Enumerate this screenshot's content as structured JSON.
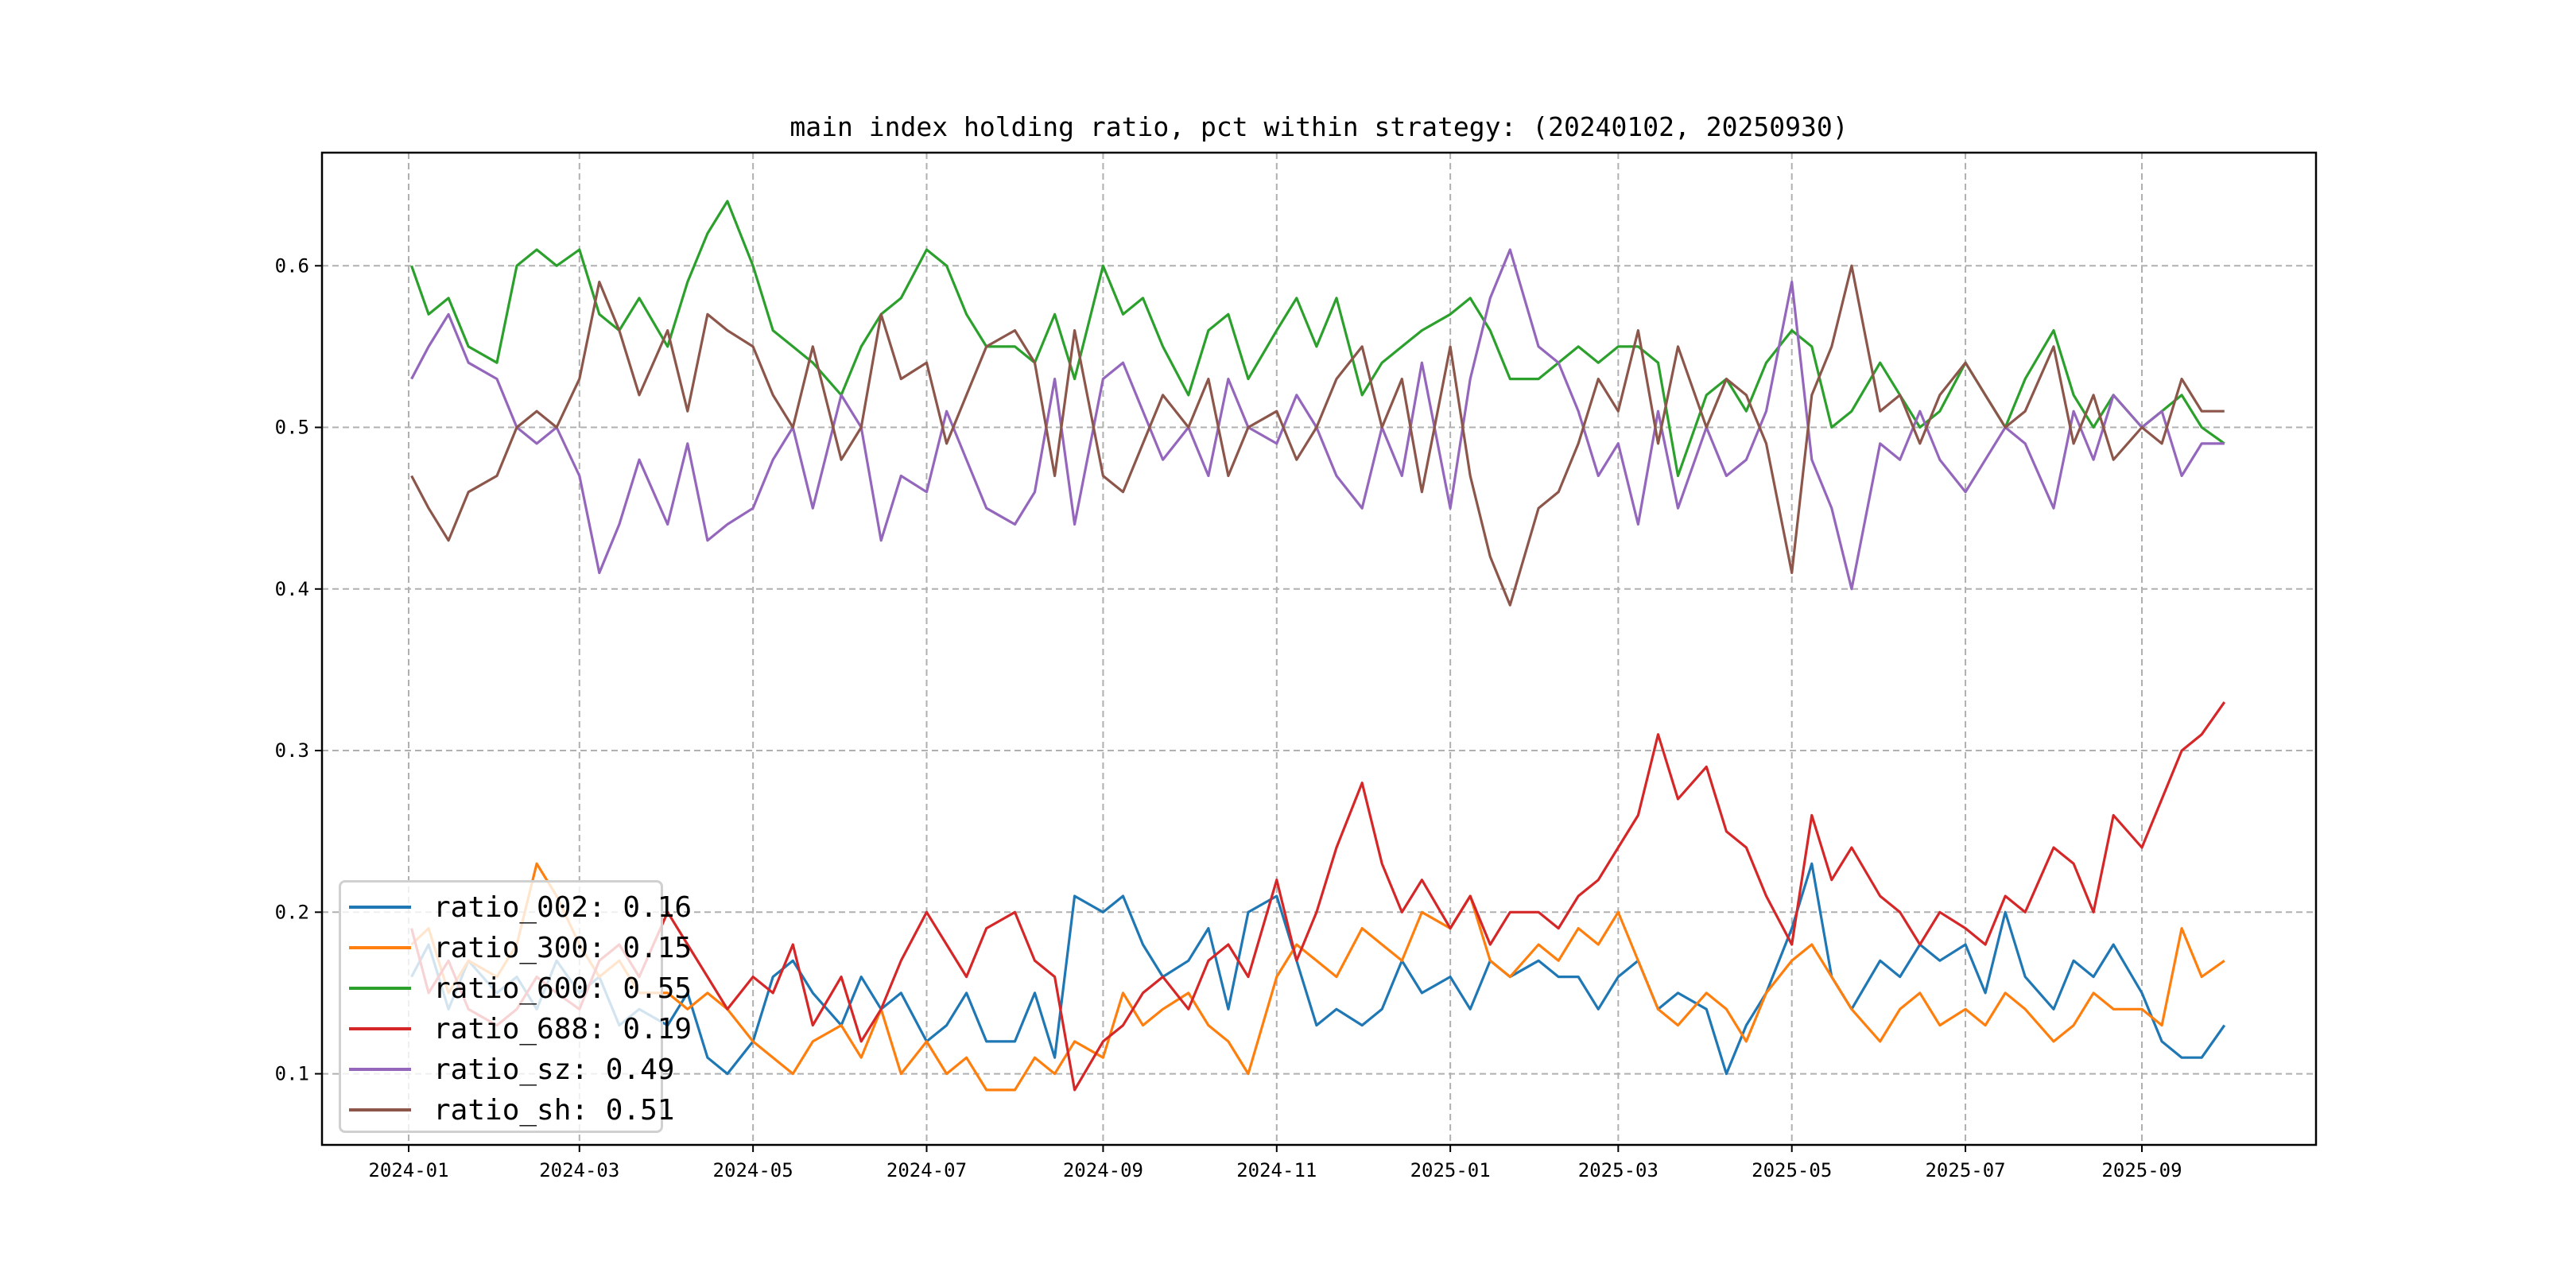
{
  "chart_data": {
    "type": "line",
    "title": "main index holding ratio, pct within strategy: (20240102, 20250930)",
    "xlabel": "",
    "ylabel": "",
    "ylim": [
      0.056,
      0.67
    ],
    "xlim": [
      "2023-12-01",
      "2025-10-31"
    ],
    "grid": true,
    "legend_placement": "lower-left",
    "x_ticks": [
      "2024-01",
      "2024-03",
      "2024-05",
      "2024-07",
      "2024-09",
      "2024-11",
      "2025-01",
      "2025-03",
      "2025-05",
      "2025-07",
      "2025-09"
    ],
    "y_ticks": [
      "0.1",
      "0.2",
      "0.3",
      "0.4",
      "0.5",
      "0.6"
    ],
    "x": [
      "2024-01-02",
      "2024-01-08",
      "2024-01-15",
      "2024-01-22",
      "2024-02-01",
      "2024-02-08",
      "2024-02-15",
      "2024-02-22",
      "2024-03-01",
      "2024-03-08",
      "2024-03-15",
      "2024-03-22",
      "2024-04-01",
      "2024-04-08",
      "2024-04-15",
      "2024-04-22",
      "2024-05-01",
      "2024-05-08",
      "2024-05-15",
      "2024-05-22",
      "2024-06-01",
      "2024-06-08",
      "2024-06-15",
      "2024-06-22",
      "2024-07-01",
      "2024-07-08",
      "2024-07-15",
      "2024-07-22",
      "2024-08-01",
      "2024-08-08",
      "2024-08-15",
      "2024-08-22",
      "2024-09-01",
      "2024-09-08",
      "2024-09-15",
      "2024-09-22",
      "2024-10-01",
      "2024-10-08",
      "2024-10-15",
      "2024-10-22",
      "2024-11-01",
      "2024-11-08",
      "2024-11-15",
      "2024-11-22",
      "2024-12-01",
      "2024-12-08",
      "2024-12-15",
      "2024-12-22",
      "2025-01-01",
      "2025-01-08",
      "2025-01-15",
      "2025-01-22",
      "2025-02-01",
      "2025-02-08",
      "2025-02-15",
      "2025-02-22",
      "2025-03-01",
      "2025-03-08",
      "2025-03-15",
      "2025-03-22",
      "2025-04-01",
      "2025-04-08",
      "2025-04-15",
      "2025-04-22",
      "2025-05-01",
      "2025-05-08",
      "2025-05-15",
      "2025-05-22",
      "2025-06-01",
      "2025-06-08",
      "2025-06-15",
      "2025-06-22",
      "2025-07-01",
      "2025-07-08",
      "2025-07-15",
      "2025-07-22",
      "2025-08-01",
      "2025-08-08",
      "2025-08-15",
      "2025-08-22",
      "2025-09-01",
      "2025-09-08",
      "2025-09-15",
      "2025-09-22",
      "2025-09-30"
    ],
    "series": [
      {
        "name": "ratio_002",
        "legend_label": "ratio_002: 0.16",
        "color": "#1f77b4",
        "values": [
          0.16,
          0.18,
          0.14,
          0.17,
          0.15,
          0.16,
          0.14,
          0.17,
          0.15,
          0.16,
          0.13,
          0.14,
          0.13,
          0.15,
          0.11,
          0.1,
          0.12,
          0.16,
          0.17,
          0.15,
          0.13,
          0.16,
          0.14,
          0.15,
          0.12,
          0.13,
          0.15,
          0.12,
          0.12,
          0.15,
          0.11,
          0.21,
          0.2,
          0.21,
          0.18,
          0.16,
          0.17,
          0.19,
          0.14,
          0.2,
          0.21,
          0.17,
          0.13,
          0.14,
          0.13,
          0.14,
          0.17,
          0.15,
          0.16,
          0.14,
          0.17,
          0.16,
          0.17,
          0.16,
          0.16,
          0.14,
          0.16,
          0.17,
          0.14,
          0.15,
          0.14,
          0.1,
          0.13,
          0.15,
          0.19,
          0.23,
          0.16,
          0.14,
          0.17,
          0.16,
          0.18,
          0.17,
          0.18,
          0.15,
          0.2,
          0.16,
          0.14,
          0.17,
          0.16,
          0.18,
          0.15,
          0.12,
          0.11,
          0.11,
          0.13
        ]
      },
      {
        "name": "ratio_300",
        "legend_label": "ratio_300: 0.15",
        "color": "#ff7f0e",
        "values": [
          0.18,
          0.19,
          0.15,
          0.17,
          0.16,
          0.18,
          0.23,
          0.21,
          0.18,
          0.16,
          0.17,
          0.15,
          0.15,
          0.14,
          0.15,
          0.14,
          0.12,
          0.11,
          0.1,
          0.12,
          0.13,
          0.11,
          0.14,
          0.1,
          0.12,
          0.1,
          0.11,
          0.09,
          0.09,
          0.11,
          0.1,
          0.12,
          0.11,
          0.15,
          0.13,
          0.14,
          0.15,
          0.13,
          0.12,
          0.1,
          0.16,
          0.18,
          0.17,
          0.16,
          0.19,
          0.18,
          0.17,
          0.2,
          0.19,
          0.21,
          0.17,
          0.16,
          0.18,
          0.17,
          0.19,
          0.18,
          0.2,
          0.17,
          0.14,
          0.13,
          0.15,
          0.14,
          0.12,
          0.15,
          0.17,
          0.18,
          0.16,
          0.14,
          0.12,
          0.14,
          0.15,
          0.13,
          0.14,
          0.13,
          0.15,
          0.14,
          0.12,
          0.13,
          0.15,
          0.14,
          0.14,
          0.13,
          0.19,
          0.16,
          0.17
        ]
      },
      {
        "name": "ratio_600",
        "legend_label": "ratio_600: 0.55",
        "color": "#2ca02c",
        "values": [
          0.6,
          0.57,
          0.58,
          0.55,
          0.54,
          0.6,
          0.61,
          0.6,
          0.61,
          0.57,
          0.56,
          0.58,
          0.55,
          0.59,
          0.62,
          0.64,
          0.6,
          0.56,
          0.55,
          0.54,
          0.52,
          0.55,
          0.57,
          0.58,
          0.61,
          0.6,
          0.57,
          0.55,
          0.55,
          0.54,
          0.57,
          0.53,
          0.6,
          0.57,
          0.58,
          0.55,
          0.52,
          0.56,
          0.57,
          0.53,
          0.56,
          0.58,
          0.55,
          0.58,
          0.52,
          0.54,
          0.55,
          0.56,
          0.57,
          0.58,
          0.56,
          0.53,
          0.53,
          0.54,
          0.55,
          0.54,
          0.55,
          0.55,
          0.54,
          0.47,
          0.52,
          0.53,
          0.51,
          0.54,
          0.56,
          0.55,
          0.5,
          0.51,
          0.54,
          0.52,
          0.5,
          0.51,
          0.54,
          0.52,
          0.5,
          0.53,
          0.56,
          0.52,
          0.5,
          0.52,
          0.5,
          0.51,
          0.52,
          0.5,
          0.49
        ]
      },
      {
        "name": "ratio_688",
        "legend_label": "ratio_688: 0.19",
        "color": "#d62728",
        "values": [
          0.19,
          0.15,
          0.17,
          0.14,
          0.13,
          0.14,
          0.16,
          0.15,
          0.14,
          0.17,
          0.18,
          0.16,
          0.2,
          0.18,
          0.16,
          0.14,
          0.16,
          0.15,
          0.18,
          0.13,
          0.16,
          0.12,
          0.14,
          0.17,
          0.2,
          0.18,
          0.16,
          0.19,
          0.2,
          0.17,
          0.16,
          0.09,
          0.12,
          0.13,
          0.15,
          0.16,
          0.14,
          0.17,
          0.18,
          0.16,
          0.22,
          0.17,
          0.2,
          0.24,
          0.28,
          0.23,
          0.2,
          0.22,
          0.19,
          0.21,
          0.18,
          0.2,
          0.2,
          0.19,
          0.21,
          0.22,
          0.24,
          0.26,
          0.31,
          0.27,
          0.29,
          0.25,
          0.24,
          0.21,
          0.18,
          0.26,
          0.22,
          0.24,
          0.21,
          0.2,
          0.18,
          0.2,
          0.19,
          0.18,
          0.21,
          0.2,
          0.24,
          0.23,
          0.2,
          0.26,
          0.24,
          0.27,
          0.3,
          0.31,
          0.33
        ]
      },
      {
        "name": "ratio_sz",
        "legend_label": "ratio_sz: 0.49",
        "color": "#9467bd",
        "values": [
          0.53,
          0.55,
          0.57,
          0.54,
          0.53,
          0.5,
          0.49,
          0.5,
          0.47,
          0.41,
          0.44,
          0.48,
          0.44,
          0.49,
          0.43,
          0.44,
          0.45,
          0.48,
          0.5,
          0.45,
          0.52,
          0.5,
          0.43,
          0.47,
          0.46,
          0.51,
          0.48,
          0.45,
          0.44,
          0.46,
          0.53,
          0.44,
          0.53,
          0.54,
          0.51,
          0.48,
          0.5,
          0.47,
          0.53,
          0.5,
          0.49,
          0.52,
          0.5,
          0.47,
          0.45,
          0.5,
          0.47,
          0.54,
          0.45,
          0.53,
          0.58,
          0.61,
          0.55,
          0.54,
          0.51,
          0.47,
          0.49,
          0.44,
          0.51,
          0.45,
          0.5,
          0.47,
          0.48,
          0.51,
          0.59,
          0.48,
          0.45,
          0.4,
          0.49,
          0.48,
          0.51,
          0.48,
          0.46,
          0.48,
          0.5,
          0.49,
          0.45,
          0.51,
          0.48,
          0.52,
          0.5,
          0.51,
          0.47,
          0.49,
          0.49
        ]
      },
      {
        "name": "ratio_sh",
        "legend_label": "ratio_sh: 0.51",
        "color": "#8c564b",
        "values": [
          0.47,
          0.45,
          0.43,
          0.46,
          0.47,
          0.5,
          0.51,
          0.5,
          0.53,
          0.59,
          0.56,
          0.52,
          0.56,
          0.51,
          0.57,
          0.56,
          0.55,
          0.52,
          0.5,
          0.55,
          0.48,
          0.5,
          0.57,
          0.53,
          0.54,
          0.49,
          0.52,
          0.55,
          0.56,
          0.54,
          0.47,
          0.56,
          0.47,
          0.46,
          0.49,
          0.52,
          0.5,
          0.53,
          0.47,
          0.5,
          0.51,
          0.48,
          0.5,
          0.53,
          0.55,
          0.5,
          0.53,
          0.46,
          0.55,
          0.47,
          0.42,
          0.39,
          0.45,
          0.46,
          0.49,
          0.53,
          0.51,
          0.56,
          0.49,
          0.55,
          0.5,
          0.53,
          0.52,
          0.49,
          0.41,
          0.52,
          0.55,
          0.6,
          0.51,
          0.52,
          0.49,
          0.52,
          0.54,
          0.52,
          0.5,
          0.51,
          0.55,
          0.49,
          0.52,
          0.48,
          0.5,
          0.49,
          0.53,
          0.51,
          0.51
        ]
      }
    ]
  }
}
